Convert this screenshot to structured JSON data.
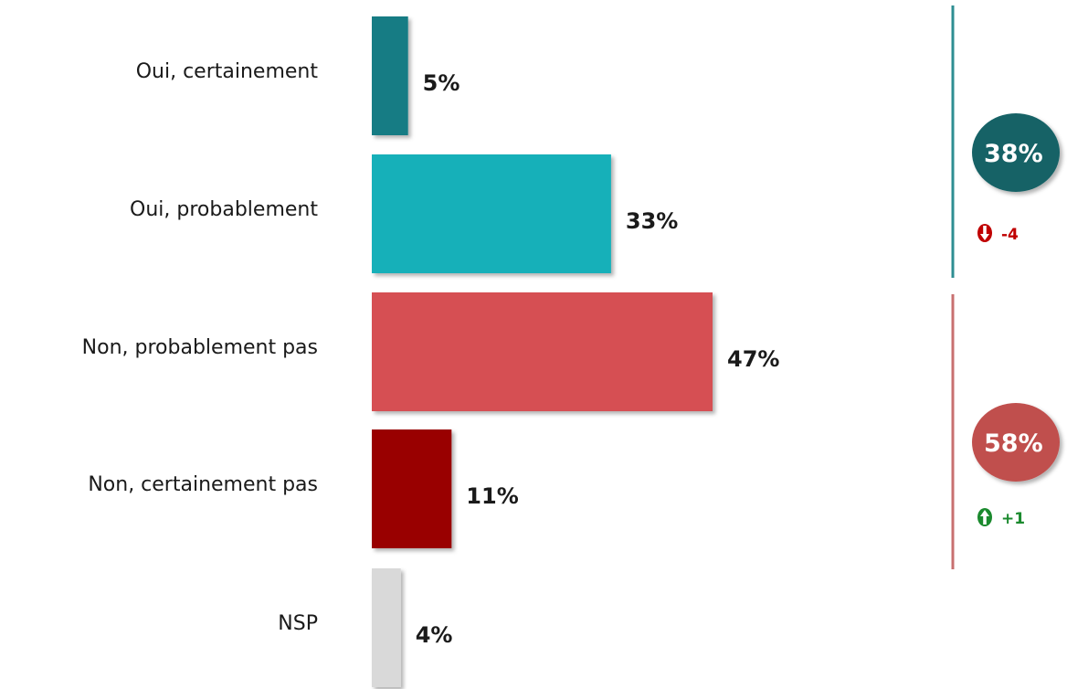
{
  "chart_data": {
    "type": "bar",
    "orientation": "horizontal",
    "categories": [
      "Oui, certainement",
      "Oui, probablement",
      "Non, probablement pas",
      "Non, certainement pas",
      "NSP"
    ],
    "values": [
      5,
      33,
      47,
      11,
      4
    ],
    "value_labels": [
      "5%",
      "33%",
      "47%",
      "11%",
      "4%"
    ],
    "bar_colors": [
      "#137b84",
      "#14b0b9",
      "#d65052",
      "#990000",
      "#d9d9d9"
    ],
    "xlim": [
      0,
      47
    ],
    "grid": false,
    "totals": [
      {
        "value": "38%",
        "delta": "-4",
        "direction": "down",
        "bubble_color": "#176266",
        "delta_color": "#c00000",
        "line_color": "#2e8e92"
      },
      {
        "value": "58%",
        "delta": "+1",
        "direction": "up",
        "bubble_color": "#c0504d",
        "delta_color": "#1b8a2e",
        "line_color": "#c87070"
      }
    ]
  }
}
